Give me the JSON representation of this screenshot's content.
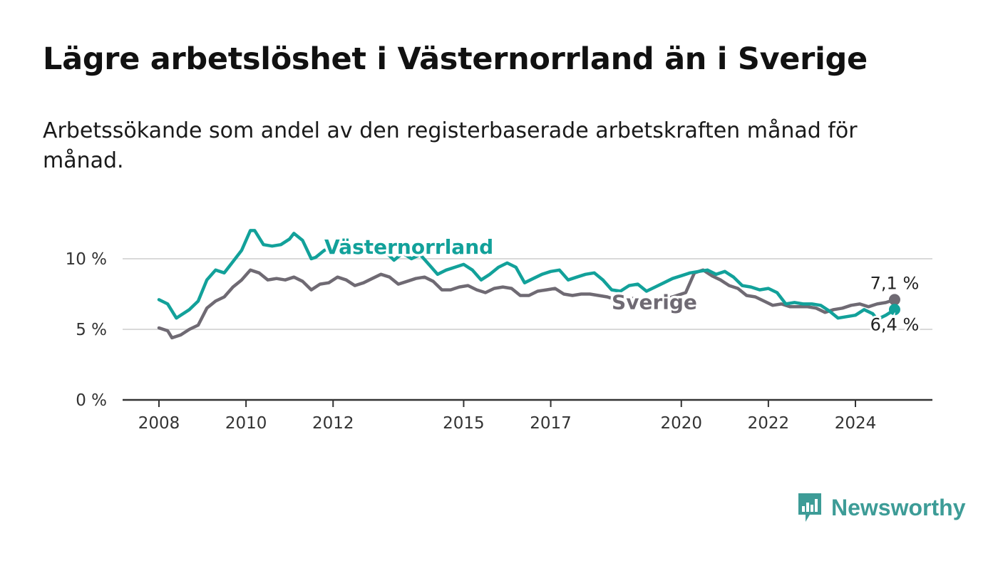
{
  "colors": {
    "vasternorrland": "#12a19a",
    "sverige": "#6f6a73",
    "gridline": "#d9d9d9",
    "axis": "#333333",
    "logo": "#3d9c97"
  },
  "chart_data": {
    "type": "line",
    "title": "Lägre arbetslöshet i Västernorrland än i Sverige",
    "subtitle": "Arbetssökande som andel av den registerbaserade arbetskraften månad för månad.",
    "xlabel": "",
    "ylabel": "",
    "ylim": [
      0,
      12.5
    ],
    "xlim": [
      2007.5,
      2026.2
    ],
    "yticks": [
      {
        "value": 0,
        "label": "0 %"
      },
      {
        "value": 5,
        "label": "5 %"
      },
      {
        "value": 10,
        "label": "10 %"
      }
    ],
    "xticks": [
      {
        "value": 2008,
        "label": "2008"
      },
      {
        "value": 2010,
        "label": "2010"
      },
      {
        "value": 2012,
        "label": "2012"
      },
      {
        "value": 2015,
        "label": "2015"
      },
      {
        "value": 2017,
        "label": "2017"
      },
      {
        "value": 2020,
        "label": "2020"
      },
      {
        "value": 2022,
        "label": "2022"
      },
      {
        "value": 2024,
        "label": "2024"
      }
    ],
    "grid": "horizontal",
    "series": [
      {
        "name": "Västernorrland",
        "color_key": "vasternorrland",
        "end_label": "6,4 %",
        "x": [
          2008.0,
          2008.2,
          2008.4,
          2008.5,
          2008.7,
          2008.9,
          2009.1,
          2009.3,
          2009.5,
          2009.7,
          2009.9,
          2010.1,
          2010.2,
          2010.4,
          2010.6,
          2010.8,
          2011.0,
          2011.1,
          2011.3,
          2011.5,
          2011.6,
          2011.8,
          2012.0,
          2012.2,
          2012.4,
          2012.6,
          2012.8,
          2013.0,
          2013.2,
          2013.4,
          2013.6,
          2013.8,
          2014.0,
          2014.2,
          2014.4,
          2014.6,
          2014.8,
          2015.0,
          2015.2,
          2015.4,
          2015.6,
          2015.8,
          2016.0,
          2016.2,
          2016.4,
          2016.6,
          2016.8,
          2017.0,
          2017.2,
          2017.4,
          2017.6,
          2017.8,
          2018.0,
          2018.2,
          2018.4,
          2018.6,
          2018.8,
          2019.0,
          2019.2,
          2019.4,
          2019.6,
          2019.8,
          2020.0,
          2020.2,
          2020.4,
          2020.6,
          2020.8,
          2021.0,
          2021.2,
          2021.4,
          2021.6,
          2021.8,
          2022.0,
          2022.2,
          2022.4,
          2022.6,
          2022.8,
          2023.0,
          2023.2,
          2023.4,
          2023.6,
          2023.8,
          2024.0,
          2024.2,
          2024.4,
          2024.5,
          2024.7,
          2024.9
        ],
        "y": [
          7.1,
          6.8,
          5.8,
          6.0,
          6.4,
          7.0,
          8.5,
          9.2,
          9.0,
          9.8,
          10.6,
          12.0,
          12.0,
          11.0,
          10.9,
          11.0,
          11.4,
          11.8,
          11.3,
          10.0,
          10.1,
          10.6,
          10.8,
          11.4,
          11.0,
          10.3,
          10.8,
          10.9,
          10.5,
          9.9,
          10.4,
          10.0,
          10.3,
          9.6,
          8.9,
          9.2,
          9.4,
          9.6,
          9.2,
          8.5,
          8.9,
          9.4,
          9.7,
          9.4,
          8.3,
          8.6,
          8.9,
          9.1,
          9.2,
          8.5,
          8.7,
          8.9,
          9.0,
          8.5,
          7.8,
          7.7,
          8.1,
          8.2,
          7.7,
          8.0,
          8.3,
          8.6,
          8.8,
          9.0,
          9.1,
          9.2,
          8.9,
          9.1,
          8.7,
          8.1,
          8.0,
          7.8,
          7.9,
          7.6,
          6.8,
          6.9,
          6.8,
          6.8,
          6.7,
          6.3,
          5.8,
          5.9,
          6.0,
          6.4,
          6.1,
          5.7,
          6.0,
          6.4
        ]
      },
      {
        "name": "Sverige",
        "color_key": "sverige",
        "end_label": "7,1 %",
        "x": [
          2008.0,
          2008.2,
          2008.3,
          2008.5,
          2008.7,
          2008.9,
          2009.1,
          2009.3,
          2009.5,
          2009.7,
          2009.9,
          2010.1,
          2010.3,
          2010.5,
          2010.7,
          2010.9,
          2011.1,
          2011.3,
          2011.5,
          2011.7,
          2011.9,
          2012.1,
          2012.3,
          2012.5,
          2012.7,
          2012.9,
          2013.1,
          2013.3,
          2013.5,
          2013.7,
          2013.9,
          2014.1,
          2014.3,
          2014.5,
          2014.7,
          2014.9,
          2015.1,
          2015.3,
          2015.5,
          2015.7,
          2015.9,
          2016.1,
          2016.3,
          2016.5,
          2016.7,
          2016.9,
          2017.1,
          2017.3,
          2017.5,
          2017.7,
          2017.9,
          2018.1,
          2018.3,
          2018.5,
          2018.7,
          2018.9,
          2019.1,
          2019.3,
          2019.5,
          2019.7,
          2019.9,
          2020.1,
          2020.3,
          2020.5,
          2020.7,
          2020.9,
          2021.1,
          2021.3,
          2021.5,
          2021.7,
          2021.9,
          2022.1,
          2022.3,
          2022.5,
          2022.7,
          2022.9,
          2023.1,
          2023.3,
          2023.5,
          2023.7,
          2023.9,
          2024.1,
          2024.3,
          2024.5,
          2024.7,
          2024.9
        ],
        "y": [
          5.1,
          4.9,
          4.4,
          4.6,
          5.0,
          5.3,
          6.5,
          7.0,
          7.3,
          8.0,
          8.5,
          9.2,
          9.0,
          8.5,
          8.6,
          8.5,
          8.7,
          8.4,
          7.8,
          8.2,
          8.3,
          8.7,
          8.5,
          8.1,
          8.3,
          8.6,
          8.9,
          8.7,
          8.2,
          8.4,
          8.6,
          8.7,
          8.4,
          7.8,
          7.8,
          8.0,
          8.1,
          7.8,
          7.6,
          7.9,
          8.0,
          7.9,
          7.4,
          7.4,
          7.7,
          7.8,
          7.9,
          7.5,
          7.4,
          7.5,
          7.5,
          7.4,
          7.3,
          7.1,
          7.0,
          7.2,
          7.1,
          6.9,
          7.0,
          7.2,
          7.4,
          7.6,
          9.0,
          9.2,
          8.8,
          8.5,
          8.1,
          7.9,
          7.4,
          7.3,
          7.0,
          6.7,
          6.8,
          6.6,
          6.6,
          6.6,
          6.5,
          6.2,
          6.4,
          6.5,
          6.7,
          6.8,
          6.6,
          6.8,
          6.9,
          7.1
        ]
      }
    ]
  },
  "logo": {
    "text": "Newsworthy",
    "icon": "bar-chart-speech-bubble-icon"
  }
}
